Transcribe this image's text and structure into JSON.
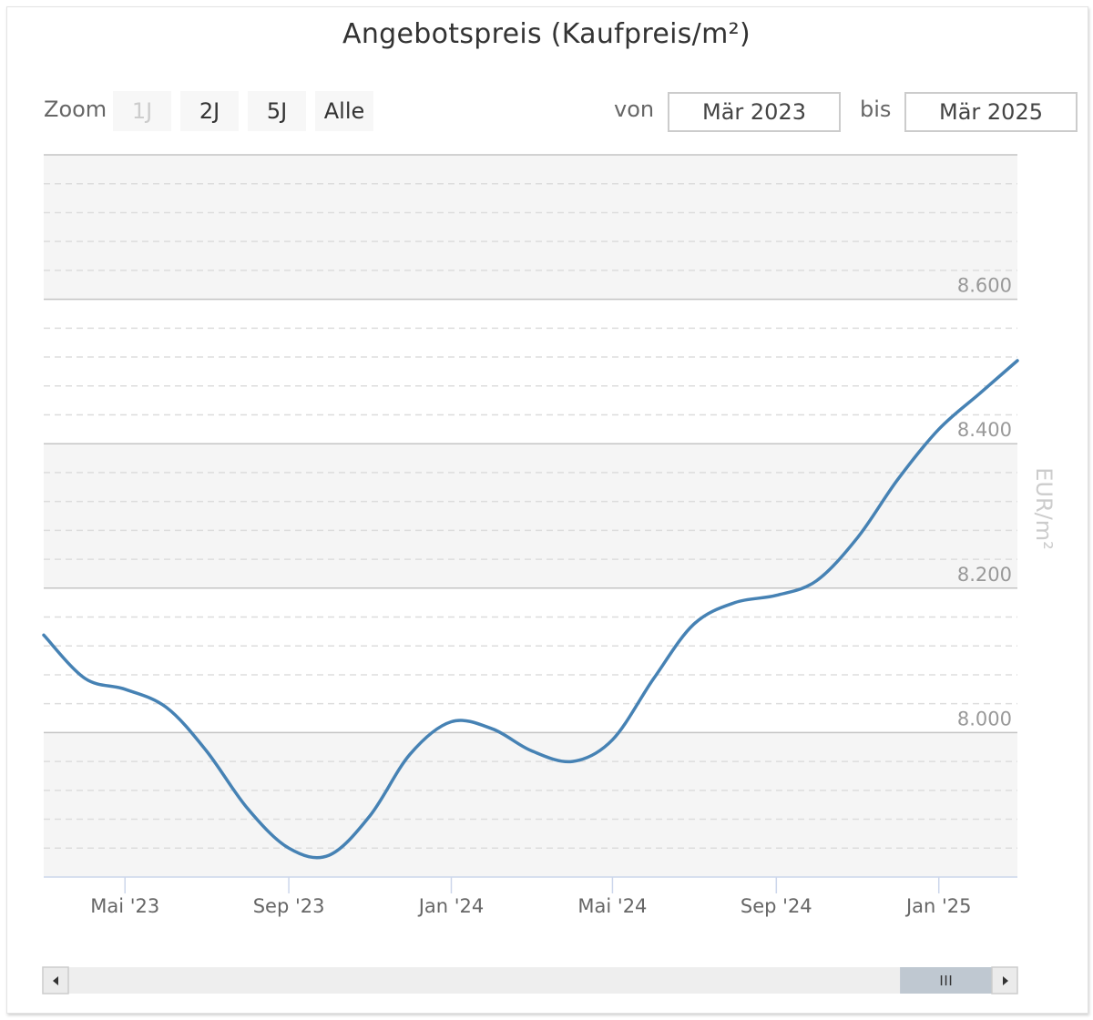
{
  "chart_data": {
    "type": "line",
    "title": "Angebotspreis (Kaufpreis/m²)",
    "ylabel": "EUR/m²",
    "ylim": [
      7800,
      8800
    ],
    "y_ticks": [
      8000,
      8200,
      8400,
      8600
    ],
    "y_tick_labels": [
      "8.000",
      "8.200",
      "8.400",
      "8.600"
    ],
    "x_range": [
      "2023-03-01",
      "2025-03-01"
    ],
    "x_ticks": [
      "2023-05-01",
      "2023-09-01",
      "2024-01-01",
      "2024-05-01",
      "2024-09-01",
      "2025-01-01"
    ],
    "x_tick_labels": [
      "Mai '23",
      "Sep '23",
      "Jan '24",
      "Mai '24",
      "Sep '24",
      "Jan '25"
    ],
    "grid": true,
    "series": [
      {
        "color": "#4682b4",
        "x": [
          "2023-03-01",
          "2023-04-01",
          "2023-05-01",
          "2023-06-01",
          "2023-07-01",
          "2023-08-01",
          "2023-09-01",
          "2023-10-01",
          "2023-11-01",
          "2023-12-01",
          "2024-01-01",
          "2024-02-01",
          "2024-03-01",
          "2024-04-01",
          "2024-05-01",
          "2024-06-01",
          "2024-07-01",
          "2024-08-01",
          "2024-09-01",
          "2024-10-01",
          "2024-11-01",
          "2024-12-01",
          "2025-01-01",
          "2025-02-01",
          "2025-03-01"
        ],
        "values": [
          8135,
          8075,
          8060,
          8035,
          7975,
          7895,
          7840,
          7830,
          7885,
          7970,
          8015,
          8005,
          7975,
          7960,
          7990,
          8075,
          8150,
          8180,
          8190,
          8210,
          8270,
          8350,
          8420,
          8470,
          8515
        ]
      }
    ]
  },
  "controls": {
    "zoom_label": "Zoom",
    "zoom_buttons": [
      "1J",
      "2J",
      "5J",
      "Alle"
    ],
    "from_label": "von",
    "from_value": "Mär 2023",
    "to_label": "bis",
    "to_value": "Mär 2025"
  },
  "scrollbar": {
    "left_arrow_icon": "triangle-left-icon",
    "right_arrow_icon": "triangle-right-icon",
    "grip_icon": "grip-lines-icon",
    "selection_start": 0.9,
    "selection_end": 1.0
  }
}
